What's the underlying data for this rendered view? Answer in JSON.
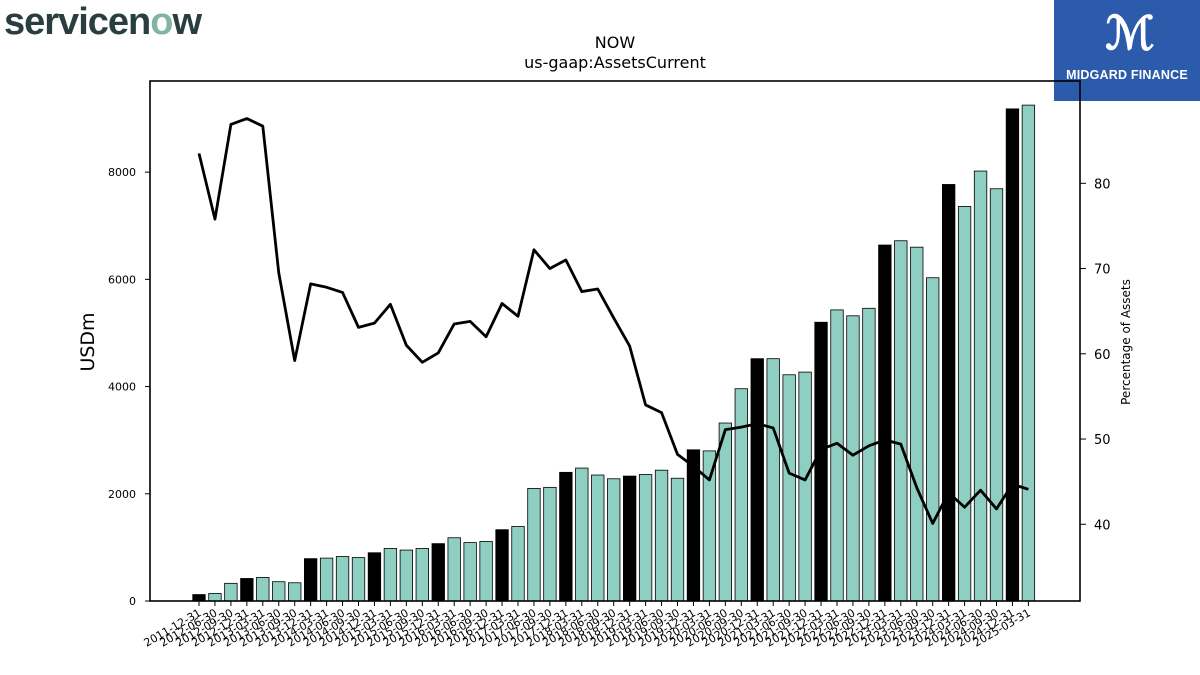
{
  "brand": {
    "name": "servicenow",
    "partner_logo_text": "MIDGARD FINANCE"
  },
  "chart_data": {
    "type": "bar",
    "title": "NOW",
    "subtitle": "us-gaap:AssetsCurrent",
    "ylabel": "USDm",
    "y2label": "Percentage of Assets",
    "ylim": [
      0,
      9700
    ],
    "y2lim": [
      31,
      92
    ],
    "yticks": [
      0,
      2000,
      4000,
      6000,
      8000
    ],
    "y2ticks": [
      40,
      50,
      60,
      70,
      80
    ],
    "grid": false,
    "legend": "none",
    "colors": {
      "annual_bar": "#000000",
      "quarter_bar": "#8ecfc1",
      "line": "#000000"
    },
    "categories": [
      "2011-12-31",
      "2012-06-30",
      "2012-09-30",
      "2012-12-31",
      "2013-03-31",
      "2013-06-30",
      "2013-09-30",
      "2013-12-31",
      "2014-03-31",
      "2014-06-30",
      "2014-09-30",
      "2014-12-31",
      "2015-03-31",
      "2015-06-30",
      "2015-09-30",
      "2015-12-31",
      "2016-03-31",
      "2016-06-30",
      "2016-09-30",
      "2016-12-31",
      "2017-03-31",
      "2017-06-30",
      "2017-09-30",
      "2017-12-31",
      "2018-03-31",
      "2018-06-30",
      "2018-09-30",
      "2018-12-31",
      "2019-03-31",
      "2019-06-30",
      "2019-09-30",
      "2019-12-31",
      "2020-03-31",
      "2020-06-30",
      "2020-09-30",
      "2020-12-31",
      "2021-03-31",
      "2021-06-30",
      "2021-09-30",
      "2021-12-31",
      "2022-03-31",
      "2022-06-30",
      "2022-09-30",
      "2022-12-31",
      "2023-03-31",
      "2023-06-30",
      "2023-09-30",
      "2023-12-31",
      "2024-03-31",
      "2024-06-30",
      "2024-09-30",
      "2024-12-31",
      "2025-03-31"
    ],
    "series": [
      {
        "values": [
          120,
          140,
          330,
          420,
          440,
          360,
          340,
          790,
          800,
          830,
          810,
          900,
          980,
          950,
          980,
          1070,
          1180,
          1090,
          1110,
          1330,
          1390,
          2100,
          2120,
          2400,
          2480,
          2350,
          2280,
          2330,
          2360,
          2440,
          2290,
          2820,
          2800,
          3320,
          3960,
          4520,
          4520,
          4220,
          4270,
          5200,
          5430,
          5320,
          5460,
          6640,
          6720,
          6600,
          6030,
          7770,
          7360,
          8020,
          7690,
          9180,
          9250
        ]
      },
      {
        "values": [
          83.5,
          75.8,
          86.9,
          87.6,
          86.7,
          69.5,
          59.2,
          68.2,
          67.8,
          67.2,
          63.1,
          63.6,
          65.8,
          61.0,
          59.0,
          60.1,
          63.5,
          63.8,
          62.0,
          65.9,
          64.4,
          72.2,
          70.0,
          71.0,
          67.3,
          67.6,
          64.2,
          60.9,
          54.0,
          53.1,
          48.2,
          46.8,
          45.2,
          51.1,
          51.4,
          51.8,
          51.3,
          46.0,
          45.2,
          48.8,
          49.5,
          48.1,
          49.2,
          49.9,
          49.4,
          44.3,
          40.1,
          43.7,
          42.0,
          44.0,
          41.8,
          44.7,
          44.1
        ]
      }
    ]
  }
}
